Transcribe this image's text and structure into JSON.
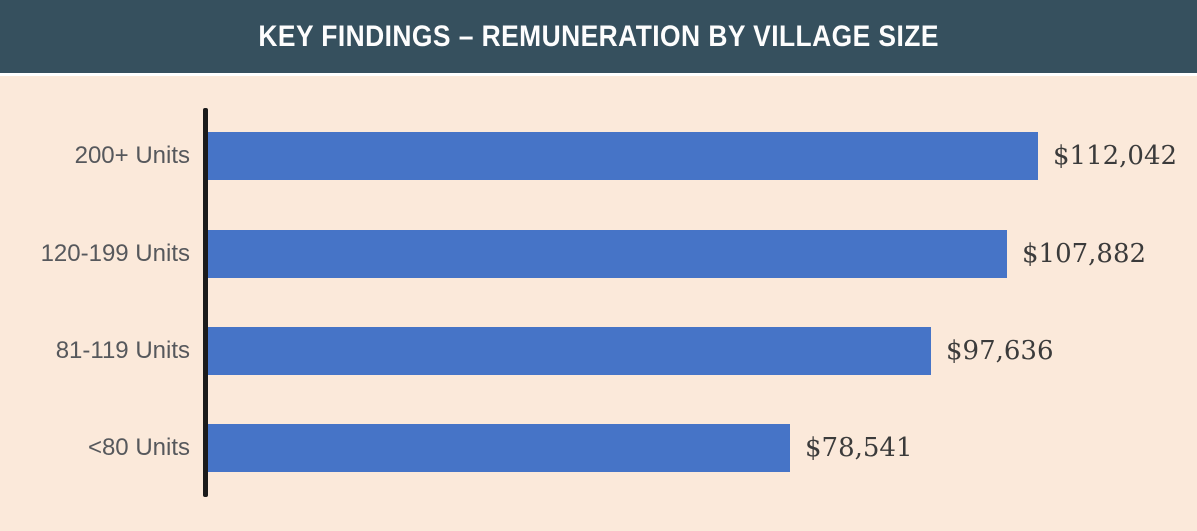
{
  "header": {
    "title": "KEY FINDINGS – REMUNERATION BY VILLAGE SIZE"
  },
  "chart_data": {
    "type": "bar",
    "orientation": "horizontal",
    "title": "KEY FINDINGS – REMUNERATION BY VILLAGE SIZE",
    "categories": [
      "200+ Units",
      "120-199 Units",
      "81-119 Units",
      "<80 Units"
    ],
    "values": [
      112042,
      107882,
      97636,
      78541
    ],
    "value_labels": [
      "$112,042",
      "$107,882",
      "$97,636",
      "$78,541"
    ],
    "xlabel": "",
    "ylabel": "",
    "xlim": [
      0,
      120000
    ],
    "grid": false,
    "legend": null,
    "colors": {
      "header": "#36505E",
      "background": "#FBE9DA",
      "bar": "#4674C7",
      "axis": "#1B1B1B",
      "category_label": "#56585C",
      "value_label": "#3B3B3B",
      "title_text": "#FDFDFD"
    }
  }
}
